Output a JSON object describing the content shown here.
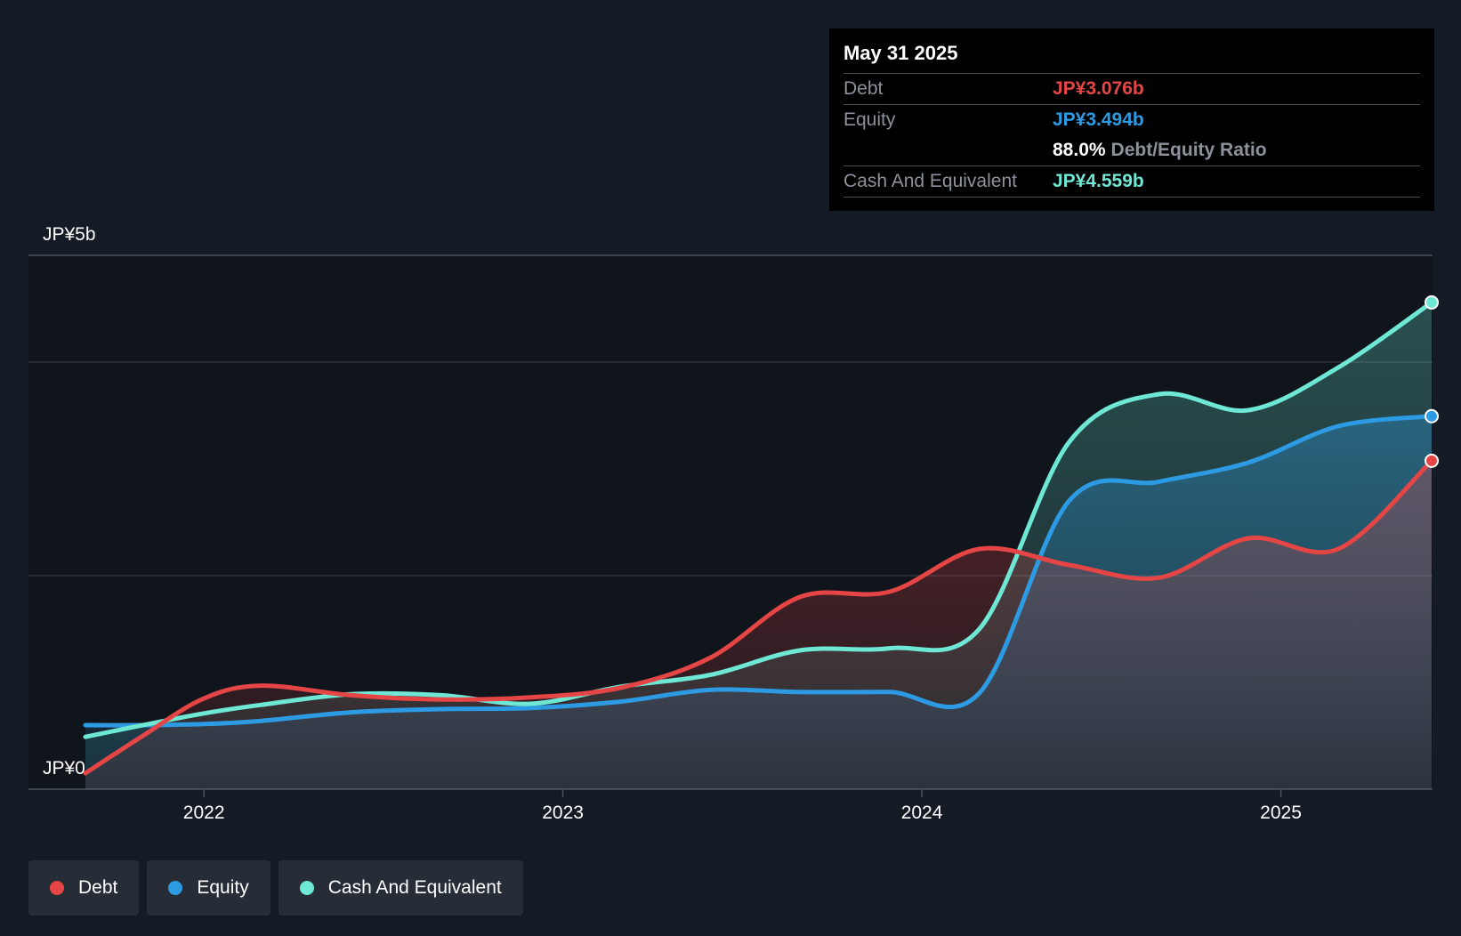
{
  "tooltip": {
    "date": "May 31 2025",
    "debt_label": "Debt",
    "debt_value": "JP¥3.076b",
    "equity_label": "Equity",
    "equity_value": "JP¥3.494b",
    "ratio_value": "88.0%",
    "ratio_label": "Debt/Equity Ratio",
    "cash_label": "Cash And Equivalent",
    "cash_value": "JP¥4.559b"
  },
  "legend": [
    {
      "label": "Debt",
      "color": "#e64545"
    },
    {
      "label": "Equity",
      "color": "#2d9be4"
    },
    {
      "label": "Cash And Equivalent",
      "color": "#6ee7d4"
    }
  ],
  "chart_data": {
    "type": "area",
    "y_unit_labels": {
      "top": "JP¥5b",
      "bottom": "JP¥0"
    },
    "ylim": [
      0,
      5
    ],
    "xlim": [
      2021.67,
      2025.42
    ],
    "x_ticks": [
      {
        "value": 2022,
        "label": "2022"
      },
      {
        "value": 2023,
        "label": "2023"
      },
      {
        "value": 2024,
        "label": "2024"
      },
      {
        "value": 2025,
        "label": "2025"
      }
    ],
    "grid": true,
    "series": [
      {
        "name": "Debt",
        "color": "#e64545",
        "x": [
          2021.67,
          2021.83,
          2022.0,
          2022.16,
          2022.41,
          2022.66,
          2022.91,
          2023.16,
          2023.41,
          2023.66,
          2023.91,
          2024.16,
          2024.41,
          2024.66,
          2024.91,
          2025.16,
          2025.42
        ],
        "y": [
          0.15,
          0.5,
          0.85,
          0.97,
          0.88,
          0.84,
          0.86,
          0.95,
          1.23,
          1.8,
          1.85,
          2.25,
          2.1,
          1.98,
          2.35,
          2.25,
          3.076
        ]
      },
      {
        "name": "Equity",
        "color": "#2d9be4",
        "x": [
          2021.67,
          2021.83,
          2022.0,
          2022.16,
          2022.41,
          2022.66,
          2022.91,
          2023.16,
          2023.41,
          2023.66,
          2023.91,
          2024.16,
          2024.41,
          2024.66,
          2024.91,
          2025.16,
          2025.42
        ],
        "y": [
          0.6,
          0.6,
          0.61,
          0.64,
          0.72,
          0.75,
          0.76,
          0.82,
          0.93,
          0.91,
          0.91,
          0.9,
          2.7,
          2.88,
          3.06,
          3.4,
          3.494
        ]
      },
      {
        "name": "Cash And Equivalent",
        "color": "#6ee7d4",
        "x": [
          2021.67,
          2021.83,
          2022.0,
          2022.16,
          2022.41,
          2022.66,
          2022.91,
          2023.16,
          2023.41,
          2023.66,
          2023.91,
          2024.16,
          2024.41,
          2024.66,
          2024.91,
          2025.16,
          2025.42
        ],
        "y": [
          0.49,
          0.6,
          0.71,
          0.79,
          0.89,
          0.88,
          0.8,
          0.96,
          1.07,
          1.3,
          1.32,
          1.5,
          3.25,
          3.7,
          3.55,
          3.95,
          4.559
        ]
      }
    ]
  }
}
